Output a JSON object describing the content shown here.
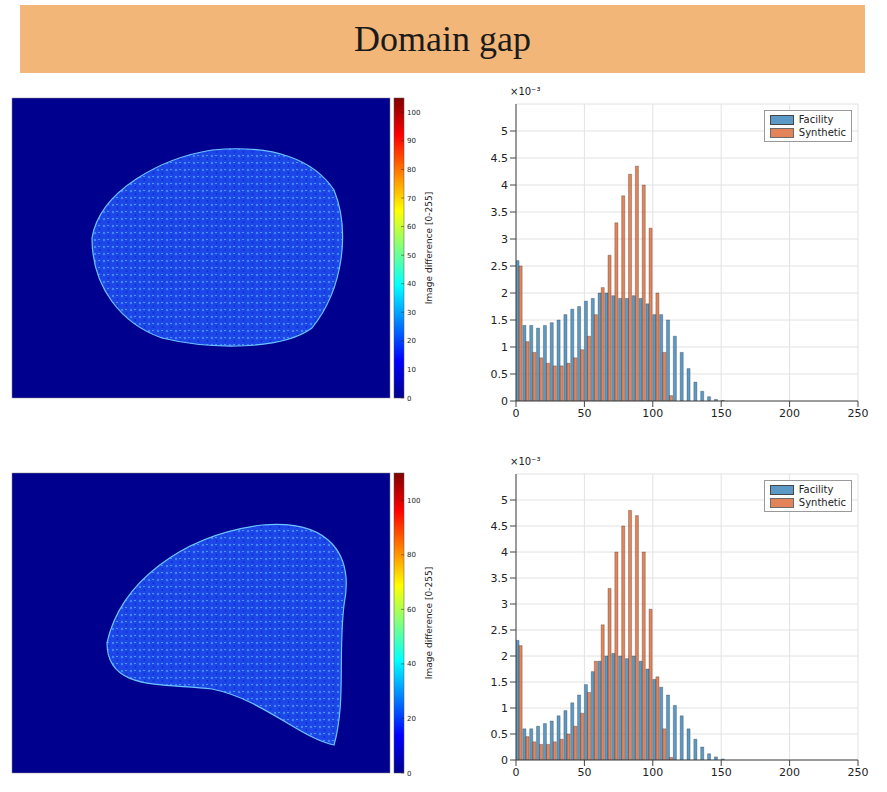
{
  "title": "Domain gap",
  "images": [
    {
      "colorbar_label": "Image difference [0-255]",
      "colorbar_range": [
        0,
        105
      ],
      "colorbar_ticks": [
        0,
        10,
        20,
        30,
        40,
        50,
        60,
        70,
        80,
        90,
        100
      ]
    },
    {
      "colorbar_label": "Image difference [0-255]",
      "colorbar_range": [
        0,
        110
      ],
      "colorbar_ticks": [
        0,
        20,
        40,
        60,
        80,
        100
      ]
    }
  ],
  "chart_data": [
    {
      "type": "histogram",
      "annotation": "×10⁻³",
      "bins": [
        0,
        5,
        10,
        15,
        20,
        25,
        30,
        35,
        40,
        45,
        50,
        55,
        60,
        65,
        70,
        75,
        80,
        85,
        90,
        95,
        100,
        105,
        110,
        115,
        120,
        125,
        130,
        135,
        140,
        145,
        150,
        155,
        160
      ],
      "series": [
        {
          "name": "Facility",
          "color": "#4a8fc0",
          "values": [
            2.6,
            1.4,
            1.4,
            1.35,
            1.4,
            1.45,
            1.5,
            1.6,
            1.7,
            1.75,
            1.85,
            1.9,
            2.0,
            2.0,
            1.95,
            1.9,
            1.9,
            1.95,
            1.9,
            1.8,
            1.6,
            1.6,
            1.5,
            1.2,
            0.9,
            0.6,
            0.35,
            0.18,
            0.08,
            0.03,
            0.01,
            0
          ]
        },
        {
          "name": "Synthetic",
          "color": "#d9541a",
          "values": [
            2.5,
            1.1,
            0.9,
            0.8,
            0.7,
            0.65,
            0.65,
            0.7,
            0.8,
            0.95,
            1.2,
            1.6,
            2.1,
            2.7,
            3.3,
            3.8,
            4.2,
            4.35,
            4.0,
            3.2,
            2.0,
            0.9,
            0.1,
            0,
            0,
            0,
            0,
            0,
            0,
            0,
            0,
            0
          ]
        }
      ],
      "xlim": [
        0,
        250
      ],
      "xticks": [
        0,
        50,
        100,
        150,
        200,
        250
      ],
      "ylim": [
        0,
        5.5
      ],
      "yticks": [
        0,
        0.5,
        1,
        1.5,
        2,
        2.5,
        3,
        3.5,
        4,
        4.5,
        5
      ],
      "grid": true,
      "legend": "upper right"
    },
    {
      "type": "histogram",
      "annotation": "×10⁻³",
      "bins": [
        0,
        5,
        10,
        15,
        20,
        25,
        30,
        35,
        40,
        45,
        50,
        55,
        60,
        65,
        70,
        75,
        80,
        85,
        90,
        95,
        100,
        105,
        110,
        115,
        120,
        125,
        130,
        135,
        140,
        145,
        150,
        155,
        160
      ],
      "series": [
        {
          "name": "Facility",
          "color": "#4a8fc0",
          "values": [
            2.3,
            0.6,
            0.6,
            0.65,
            0.7,
            0.75,
            0.85,
            0.95,
            1.1,
            1.25,
            1.45,
            1.7,
            1.9,
            2.0,
            2.05,
            2.0,
            1.95,
            2.0,
            1.9,
            1.75,
            1.55,
            1.4,
            1.25,
            1.05,
            0.85,
            0.6,
            0.4,
            0.25,
            0.12,
            0.06,
            0.02,
            0
          ]
        },
        {
          "name": "Synthetic",
          "color": "#d9541a",
          "values": [
            2.2,
            0.45,
            0.35,
            0.3,
            0.3,
            0.35,
            0.4,
            0.5,
            0.65,
            0.9,
            1.3,
            1.9,
            2.6,
            3.3,
            4.0,
            4.5,
            4.8,
            4.7,
            4.0,
            2.9,
            1.6,
            0.6,
            0.05,
            0,
            0,
            0,
            0,
            0,
            0,
            0,
            0,
            0
          ]
        }
      ],
      "xlim": [
        0,
        250
      ],
      "xticks": [
        0,
        50,
        100,
        150,
        200,
        250
      ],
      "ylim": [
        0,
        5.5
      ],
      "yticks": [
        0,
        0.5,
        1,
        1.5,
        2,
        2.5,
        3,
        3.5,
        4,
        4.5,
        5
      ],
      "grid": true,
      "legend": "upper right"
    }
  ]
}
